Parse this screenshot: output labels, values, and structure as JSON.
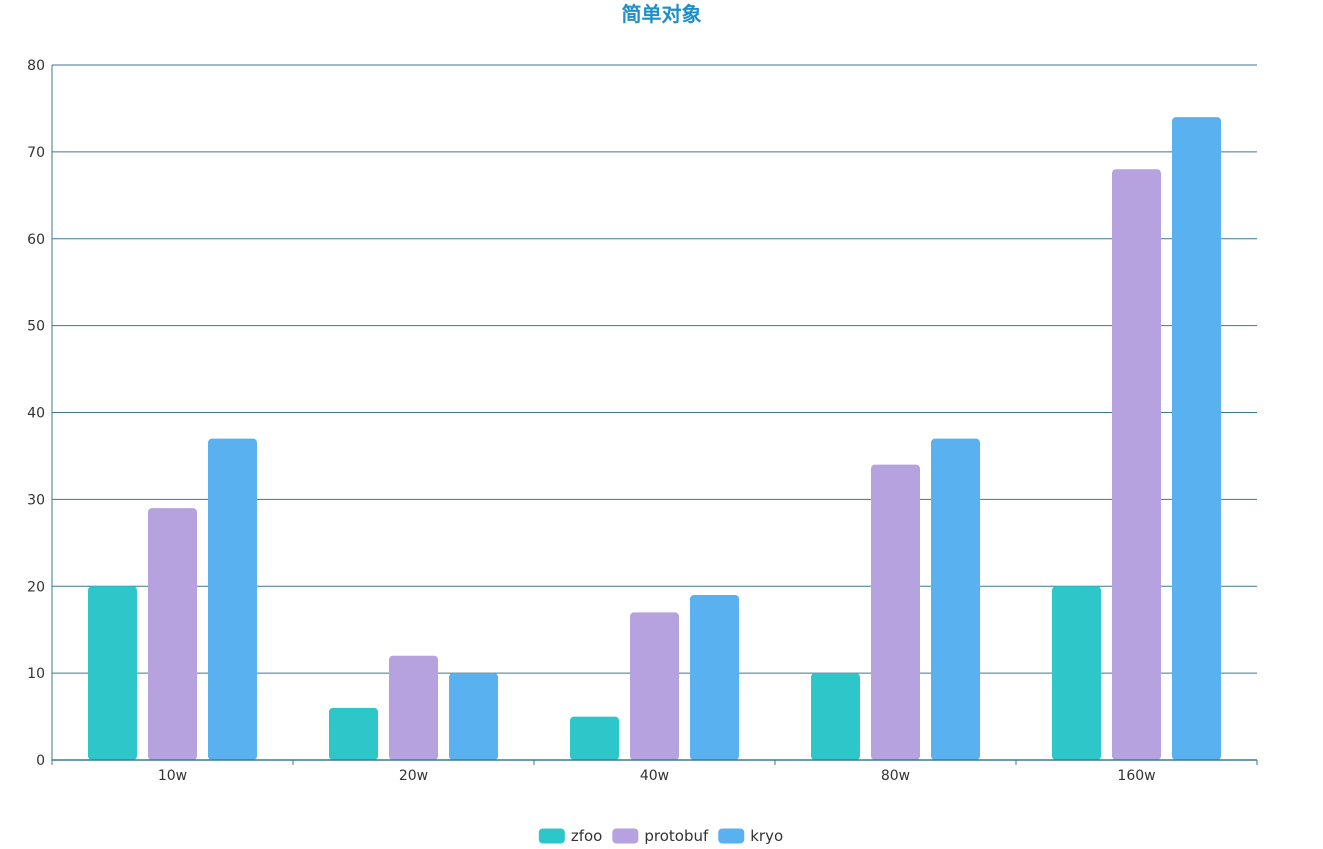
{
  "chart_data": {
    "type": "bar",
    "title": "简单对象",
    "xlabel": "",
    "ylabel": "",
    "categories": [
      "10w",
      "20w",
      "40w",
      "80w",
      "160w"
    ],
    "series": [
      {
        "name": "zfoo",
        "color": "#2ec7c9",
        "values": [
          20,
          6,
          5,
          10,
          20
        ]
      },
      {
        "name": "protobuf",
        "color": "#b6a2de",
        "values": [
          29,
          12,
          17,
          34,
          68
        ]
      },
      {
        "name": "kryo",
        "color": "#5ab1ef",
        "values": [
          37,
          10,
          19,
          37,
          74
        ]
      }
    ],
    "ylim": [
      0,
      80
    ],
    "yticks": [
      0,
      10,
      20,
      30,
      40,
      50,
      60,
      70,
      80
    ],
    "grid": true,
    "legend_position": "bottom-center",
    "axis_color": "#3b7a8f",
    "grid_color": "#3b7a8f"
  }
}
